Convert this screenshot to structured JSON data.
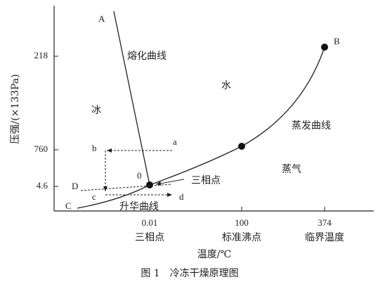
{
  "axes": {
    "y_title": "压强/(×133Pa)",
    "x_title": "温度/℃",
    "y_ticks": [
      "218",
      "760",
      "4.6"
    ],
    "x_ticks": [
      {
        "value": "0.01",
        "note": "三相点"
      },
      {
        "value": "100",
        "note": "标准沸点"
      },
      {
        "value": "374",
        "note": "临界温度"
      }
    ]
  },
  "points": {
    "A": "A",
    "B": "B",
    "C": "C",
    "D": "D",
    "O": "0",
    "a": "a",
    "b": "b",
    "c": "c",
    "d": "d"
  },
  "regions": {
    "melting_curve": "熔化曲线",
    "water": "水",
    "ice": "冰",
    "evaporation_curve": "蒸发曲线",
    "vapor": "蒸气",
    "triple_point": "三相点",
    "sublimation_curve": "升华曲线"
  },
  "caption": "图 1　冷冻干燥原理图"
}
